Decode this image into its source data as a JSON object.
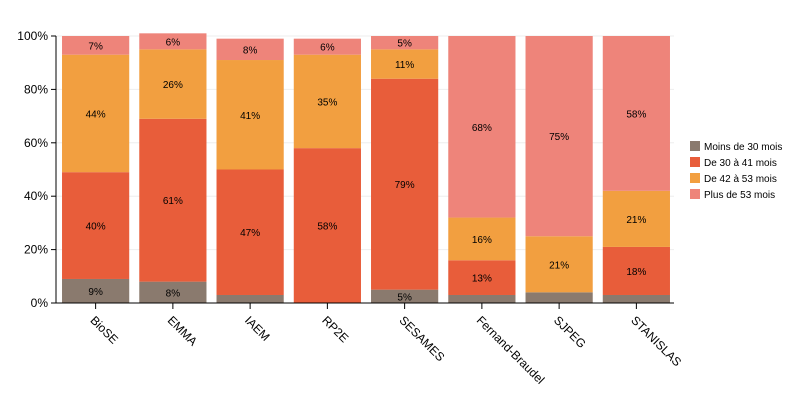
{
  "chart_data": {
    "type": "bar",
    "stacked": true,
    "categories": [
      "BioSE",
      "EMMA",
      "IAEM",
      "RP2E",
      "SESAMES",
      "Fernand-Braudel",
      "SJPEG",
      "STANISLAS"
    ],
    "series": [
      {
        "name": "Moins de 30 mois",
        "color": "#8a7a6e",
        "values": [
          9,
          8,
          3,
          0,
          5,
          3,
          4,
          3
        ]
      },
      {
        "name": "De 30 à 41 mois",
        "color": "#e85d3a",
        "values": [
          40,
          61,
          47,
          58,
          79,
          13,
          0,
          18
        ]
      },
      {
        "name": "De 42 à 53 mois",
        "color": "#f29f40",
        "values": [
          44,
          26,
          41,
          35,
          11,
          16,
          21,
          21
        ]
      },
      {
        "name": "Plus de 53 mois",
        "color": "#ee847a",
        "values": [
          7,
          6,
          8,
          6,
          5,
          68,
          75,
          58
        ]
      }
    ],
    "ylim": [
      0,
      100
    ],
    "yticks": [
      "0%",
      "20%",
      "40%",
      "60%",
      "80%",
      "100%"
    ],
    "grid": true,
    "legend": "right",
    "label_threshold": 5
  }
}
